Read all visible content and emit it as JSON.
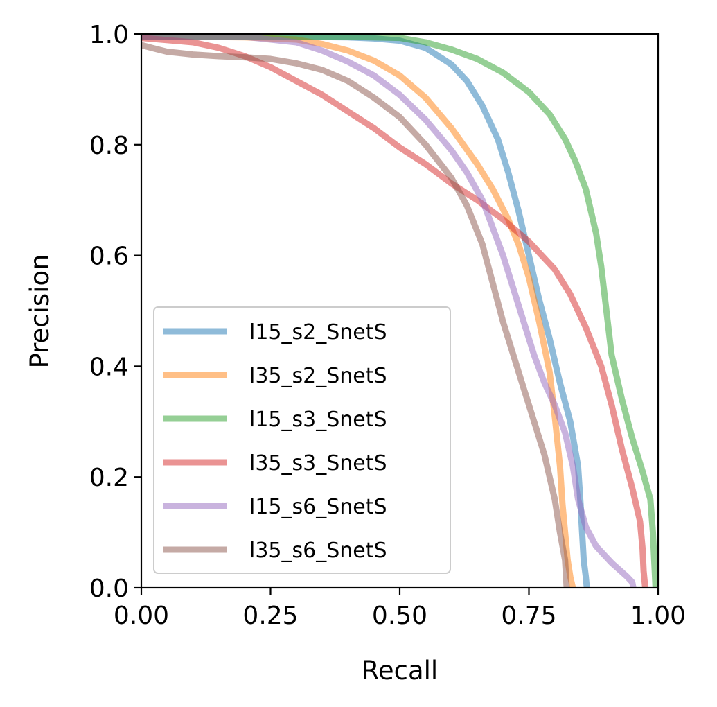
{
  "chart_data": {
    "type": "line",
    "title": "",
    "xlabel": "Recall",
    "ylabel": "Precision",
    "xlim": [
      0,
      1
    ],
    "ylim": [
      0,
      1
    ],
    "grid": false,
    "legend_position": "lower-left",
    "x_ticks": [
      "0.00",
      "0.25",
      "0.50",
      "0.75",
      "1.00"
    ],
    "y_ticks": [
      "0.0",
      "0.2",
      "0.4",
      "0.6",
      "0.8",
      "1.0"
    ],
    "series": [
      {
        "name": "l15_s2_SnetS",
        "color": "#1f77b4",
        "points": [
          [
            0.0,
            0.995
          ],
          [
            0.1,
            0.995
          ],
          [
            0.2,
            0.995
          ],
          [
            0.3,
            0.995
          ],
          [
            0.4,
            0.994
          ],
          [
            0.45,
            0.992
          ],
          [
            0.5,
            0.988
          ],
          [
            0.55,
            0.975
          ],
          [
            0.6,
            0.945
          ],
          [
            0.63,
            0.915
          ],
          [
            0.66,
            0.87
          ],
          [
            0.69,
            0.81
          ],
          [
            0.71,
            0.75
          ],
          [
            0.73,
            0.68
          ],
          [
            0.75,
            0.6
          ],
          [
            0.77,
            0.52
          ],
          [
            0.79,
            0.45
          ],
          [
            0.81,
            0.37
          ],
          [
            0.83,
            0.3
          ],
          [
            0.845,
            0.22
          ],
          [
            0.85,
            0.15
          ],
          [
            0.853,
            0.1
          ],
          [
            0.856,
            0.05
          ],
          [
            0.86,
            0.02
          ],
          [
            0.862,
            0.0
          ]
        ]
      },
      {
        "name": "l35_s2_SnetS",
        "color": "#ff7f0e",
        "points": [
          [
            0.0,
            0.995
          ],
          [
            0.1,
            0.995
          ],
          [
            0.2,
            0.994
          ],
          [
            0.3,
            0.99
          ],
          [
            0.35,
            0.982
          ],
          [
            0.4,
            0.97
          ],
          [
            0.45,
            0.952
          ],
          [
            0.5,
            0.925
          ],
          [
            0.55,
            0.885
          ],
          [
            0.6,
            0.83
          ],
          [
            0.65,
            0.765
          ],
          [
            0.68,
            0.72
          ],
          [
            0.71,
            0.665
          ],
          [
            0.73,
            0.62
          ],
          [
            0.75,
            0.56
          ],
          [
            0.77,
            0.48
          ],
          [
            0.79,
            0.39
          ],
          [
            0.8,
            0.31
          ],
          [
            0.81,
            0.22
          ],
          [
            0.815,
            0.15
          ],
          [
            0.82,
            0.1
          ],
          [
            0.825,
            0.05
          ],
          [
            0.83,
            0.02
          ],
          [
            0.835,
            0.0
          ]
        ]
      },
      {
        "name": "l15_s3_SnetS",
        "color": "#2ca02c",
        "points": [
          [
            0.0,
            0.995
          ],
          [
            0.2,
            0.995
          ],
          [
            0.4,
            0.995
          ],
          [
            0.5,
            0.993
          ],
          [
            0.55,
            0.985
          ],
          [
            0.6,
            0.972
          ],
          [
            0.65,
            0.955
          ],
          [
            0.7,
            0.93
          ],
          [
            0.75,
            0.895
          ],
          [
            0.79,
            0.855
          ],
          [
            0.82,
            0.81
          ],
          [
            0.84,
            0.77
          ],
          [
            0.86,
            0.72
          ],
          [
            0.88,
            0.64
          ],
          [
            0.89,
            0.58
          ],
          [
            0.9,
            0.5
          ],
          [
            0.91,
            0.42
          ],
          [
            0.93,
            0.34
          ],
          [
            0.95,
            0.27
          ],
          [
            0.97,
            0.21
          ],
          [
            0.985,
            0.16
          ],
          [
            0.99,
            0.1
          ],
          [
            0.993,
            0.04
          ],
          [
            0.995,
            0.0
          ]
        ]
      },
      {
        "name": "l35_s3_SnetS",
        "color": "#d62728",
        "points": [
          [
            0.0,
            0.993
          ],
          [
            0.1,
            0.985
          ],
          [
            0.15,
            0.975
          ],
          [
            0.2,
            0.96
          ],
          [
            0.25,
            0.94
          ],
          [
            0.3,
            0.915
          ],
          [
            0.35,
            0.89
          ],
          [
            0.4,
            0.86
          ],
          [
            0.45,
            0.83
          ],
          [
            0.5,
            0.795
          ],
          [
            0.55,
            0.765
          ],
          [
            0.6,
            0.73
          ],
          [
            0.65,
            0.7
          ],
          [
            0.7,
            0.665
          ],
          [
            0.75,
            0.625
          ],
          [
            0.8,
            0.575
          ],
          [
            0.83,
            0.53
          ],
          [
            0.86,
            0.47
          ],
          [
            0.89,
            0.4
          ],
          [
            0.91,
            0.33
          ],
          [
            0.93,
            0.25
          ],
          [
            0.95,
            0.18
          ],
          [
            0.965,
            0.12
          ],
          [
            0.97,
            0.07
          ],
          [
            0.972,
            0.03
          ],
          [
            0.975,
            0.0
          ]
        ]
      },
      {
        "name": "l15_s6_SnetS",
        "color": "#9467bd",
        "points": [
          [
            0.0,
            0.995
          ],
          [
            0.1,
            0.995
          ],
          [
            0.2,
            0.995
          ],
          [
            0.3,
            0.985
          ],
          [
            0.35,
            0.97
          ],
          [
            0.4,
            0.95
          ],
          [
            0.45,
            0.925
          ],
          [
            0.5,
            0.89
          ],
          [
            0.55,
            0.845
          ],
          [
            0.6,
            0.79
          ],
          [
            0.63,
            0.75
          ],
          [
            0.66,
            0.7
          ],
          [
            0.68,
            0.65
          ],
          [
            0.7,
            0.6
          ],
          [
            0.72,
            0.54
          ],
          [
            0.74,
            0.48
          ],
          [
            0.76,
            0.42
          ],
          [
            0.78,
            0.37
          ],
          [
            0.8,
            0.33
          ],
          [
            0.82,
            0.28
          ],
          [
            0.835,
            0.22
          ],
          [
            0.845,
            0.16
          ],
          [
            0.86,
            0.11
          ],
          [
            0.88,
            0.075
          ],
          [
            0.91,
            0.045
          ],
          [
            0.94,
            0.02
          ],
          [
            0.95,
            0.01
          ],
          [
            0.952,
            0.0
          ]
        ]
      },
      {
        "name": "l35_s6_SnetS",
        "color": "#8c564b",
        "points": [
          [
            0.0,
            0.98
          ],
          [
            0.02,
            0.975
          ],
          [
            0.05,
            0.968
          ],
          [
            0.1,
            0.963
          ],
          [
            0.15,
            0.96
          ],
          [
            0.2,
            0.958
          ],
          [
            0.25,
            0.955
          ],
          [
            0.3,
            0.947
          ],
          [
            0.35,
            0.935
          ],
          [
            0.4,
            0.915
          ],
          [
            0.45,
            0.885
          ],
          [
            0.5,
            0.85
          ],
          [
            0.55,
            0.8
          ],
          [
            0.6,
            0.74
          ],
          [
            0.63,
            0.69
          ],
          [
            0.66,
            0.62
          ],
          [
            0.68,
            0.55
          ],
          [
            0.7,
            0.48
          ],
          [
            0.72,
            0.42
          ],
          [
            0.74,
            0.36
          ],
          [
            0.76,
            0.3
          ],
          [
            0.78,
            0.24
          ],
          [
            0.8,
            0.16
          ],
          [
            0.81,
            0.1
          ],
          [
            0.82,
            0.05
          ],
          [
            0.823,
            0.0
          ]
        ]
      }
    ]
  }
}
